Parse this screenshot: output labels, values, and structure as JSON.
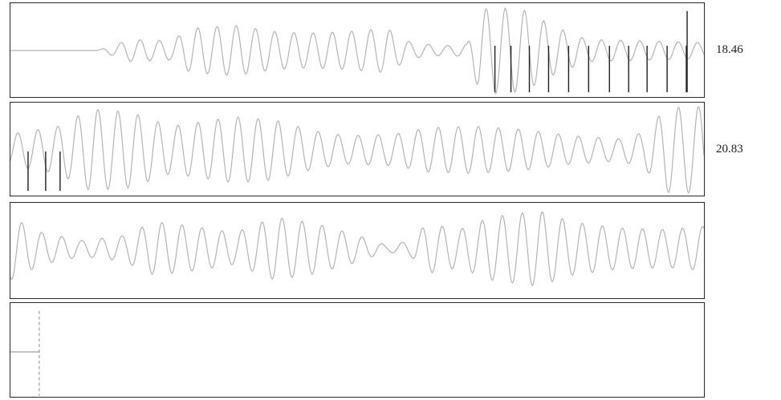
{
  "panels": [
    {
      "scale_label": "18.46"
    },
    {
      "scale_label": "20.83"
    },
    {
      "scale_label": ""
    },
    {
      "scale_label": ""
    }
  ],
  "colors": {
    "trace": "#b4b4b4",
    "marker": "#1e1e1e",
    "border": "#2a2a2a",
    "dashed_marker": "#888888"
  },
  "chart_data": [
    {
      "type": "line",
      "title": "",
      "xlabel": "",
      "ylabel": "",
      "grid": false,
      "series": [
        {
          "values_description_omitted": true
        }
      ]
    }
  ]
}
